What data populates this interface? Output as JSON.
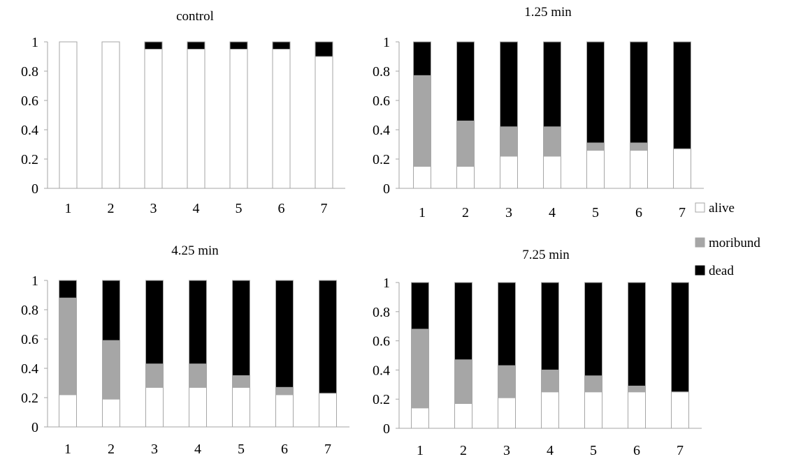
{
  "chart_data": [
    {
      "type": "bar",
      "stacked": true,
      "title": "control",
      "categories": [
        "1",
        "2",
        "3",
        "4",
        "5",
        "6",
        "7"
      ],
      "ylim": [
        0,
        1
      ],
      "yticks": [
        "0",
        "0.2",
        "0.4",
        "0.6",
        "0.8",
        "1"
      ],
      "grid": false,
      "series": [
        {
          "name": "alive",
          "values": [
            1.0,
            1.0,
            0.95,
            0.95,
            0.95,
            0.95,
            0.9
          ]
        },
        {
          "name": "moribund",
          "values": [
            0,
            0,
            0,
            0,
            0,
            0,
            0
          ]
        },
        {
          "name": "dead",
          "values": [
            0,
            0,
            0.05,
            0.05,
            0.05,
            0.05,
            0.1
          ]
        }
      ]
    },
    {
      "type": "bar",
      "stacked": true,
      "title": "1.25 min",
      "categories": [
        "1",
        "2",
        "3",
        "4",
        "5",
        "6",
        "7"
      ],
      "ylim": [
        0,
        1
      ],
      "yticks": [
        "0",
        "0.2",
        "0.4",
        "0.6",
        "0.8",
        "1"
      ],
      "grid": false,
      "series": [
        {
          "name": "alive",
          "values": [
            0.15,
            0.15,
            0.22,
            0.22,
            0.26,
            0.26,
            0.27
          ]
        },
        {
          "name": "moribund",
          "values": [
            0.62,
            0.31,
            0.2,
            0.2,
            0.05,
            0.05,
            0
          ]
        },
        {
          "name": "dead",
          "values": [
            0.23,
            0.54,
            0.58,
            0.58,
            0.69,
            0.69,
            0.73
          ]
        }
      ]
    },
    {
      "type": "bar",
      "stacked": true,
      "title": "4.25 min",
      "categories": [
        "1",
        "2",
        "3",
        "4",
        "5",
        "6",
        "7"
      ],
      "ylim": [
        0,
        1
      ],
      "yticks": [
        "0",
        "0.2",
        "0.4",
        "0.6",
        "0.8",
        "1"
      ],
      "grid": false,
      "series": [
        {
          "name": "alive",
          "values": [
            0.22,
            0.19,
            0.27,
            0.27,
            0.27,
            0.22,
            0.23
          ]
        },
        {
          "name": "moribund",
          "values": [
            0.66,
            0.4,
            0.16,
            0.16,
            0.08,
            0.05,
            0
          ]
        },
        {
          "name": "dead",
          "values": [
            0.12,
            0.41,
            0.57,
            0.57,
            0.65,
            0.73,
            0.77
          ]
        }
      ]
    },
    {
      "type": "bar",
      "stacked": true,
      "title": "7.25 min",
      "categories": [
        "1",
        "2",
        "3",
        "4",
        "5",
        "6",
        "7"
      ],
      "ylim": [
        0,
        1
      ],
      "yticks": [
        "0",
        "0.2",
        "0.4",
        "0.6",
        "0.8",
        "1"
      ],
      "grid": false,
      "series": [
        {
          "name": "alive",
          "values": [
            0.14,
            0.17,
            0.21,
            0.25,
            0.25,
            0.25,
            0.25
          ]
        },
        {
          "name": "moribund",
          "values": [
            0.54,
            0.3,
            0.22,
            0.15,
            0.11,
            0.04,
            0
          ]
        },
        {
          "name": "dead",
          "values": [
            0.32,
            0.53,
            0.57,
            0.6,
            0.64,
            0.71,
            0.75
          ]
        }
      ]
    }
  ],
  "legend": {
    "placement": "right",
    "items": [
      {
        "label": "alive",
        "color": "#ffffff"
      },
      {
        "label": "moribund",
        "color": "#a6a6a6"
      },
      {
        "label": "dead",
        "color": "#000000"
      }
    ]
  },
  "colors": {
    "alive": "#ffffff",
    "moribund": "#a6a6a6",
    "dead": "#000000",
    "bar_outline": "#a6a6a6",
    "axis": "#a6a6a6"
  }
}
